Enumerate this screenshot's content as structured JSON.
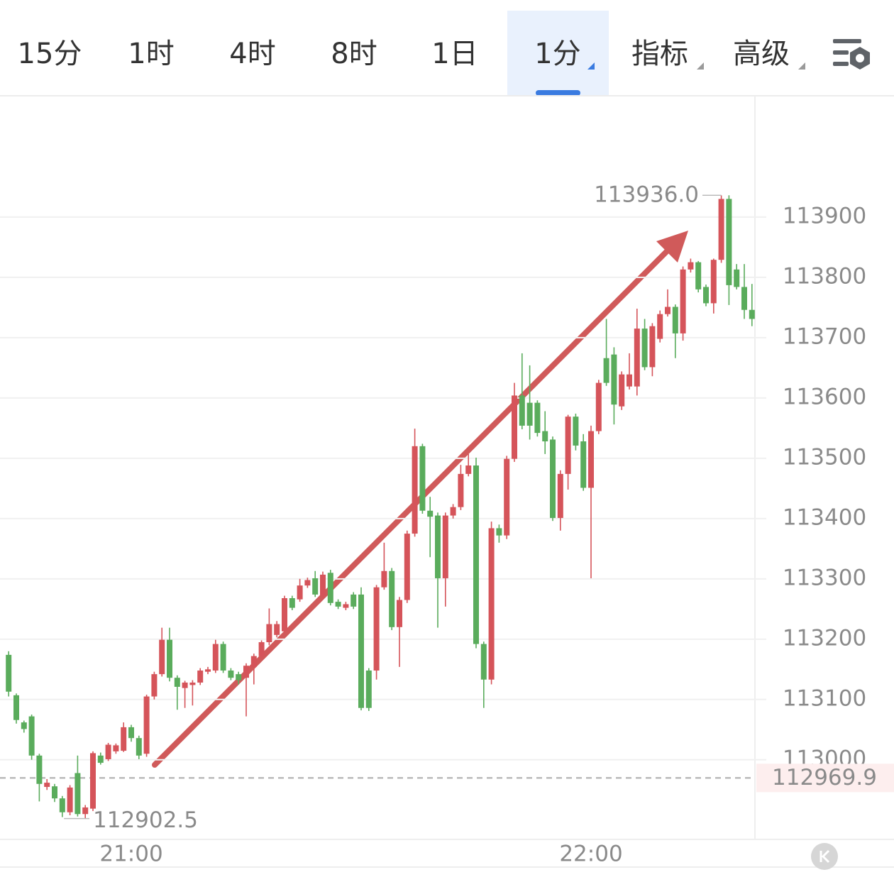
{
  "toolbar": {
    "tabs": [
      "15分",
      "1时",
      "4时",
      "8时",
      "1日",
      "1分",
      "指标",
      "高级"
    ],
    "active_tab": 5
  },
  "chart_data": {
    "type": "candlestick",
    "categories": [
      null,
      null,
      null,
      null,
      null,
      null,
      null,
      null,
      null,
      null,
      null,
      null,
      null,
      null,
      null,
      null,
      "21:00",
      null,
      null,
      null,
      null,
      null,
      null,
      null,
      null,
      null,
      null,
      null,
      null,
      null,
      null,
      null,
      null,
      null,
      null,
      null,
      null,
      null,
      null,
      null,
      null,
      null,
      null,
      null,
      null,
      null,
      null,
      null,
      null,
      null,
      null,
      null,
      null,
      null,
      null,
      null,
      null,
      null,
      null,
      null,
      null,
      null,
      null,
      null,
      null,
      null,
      null,
      null,
      null,
      null,
      null,
      null,
      null,
      null,
      null,
      null,
      "22:00",
      null,
      null,
      null,
      null,
      null,
      null,
      null,
      null,
      null,
      null,
      null,
      null,
      null,
      null,
      null,
      null,
      null,
      null,
      null,
      null,
      null
    ],
    "open": [
      113174,
      113107,
      113062,
      113072,
      113007,
      112955,
      112956,
      112936,
      112913,
      112978,
      112910,
      112919,
      113007,
      113001,
      113014,
      113015,
      113054,
      113036,
      113010,
      113105,
      113142,
      113199,
      113136,
      113119,
      113124,
      113128,
      113146,
      113148,
      113192,
      113148,
      113142,
      113136,
      113154,
      113172,
      113195,
      113207,
      113213,
      113268,
      113266,
      113289,
      113301,
      113272,
      113310,
      113262,
      113252,
      113274,
      113274,
      113148,
      113148,
      113286,
      113313,
      113220,
      113265,
      113375,
      113520,
      113413,
      113405,
      113301,
      113405,
      113419,
      113474,
      113488,
      113192,
      113133,
      113384,
      113372,
      113499,
      113604,
      113592,
      113592,
      113545,
      113531,
      113401,
      113474,
      113569,
      113528,
      113451,
      113545,
      113666,
      113672,
      113586,
      113619,
      113619,
      113715,
      113651,
      113698,
      113739,
      113751,
      113707,
      113813,
      113825,
      113784,
      113757,
      113829,
      113930,
      113813,
      113784,
      113746
    ],
    "close": [
      113113,
      113066,
      113051,
      113007,
      112960,
      112962,
      112936,
      112913,
      112954,
      112910,
      112921,
      113011,
      112995,
      113025,
      113024,
      113054,
      113036,
      113007,
      113105,
      113142,
      113199,
      113136,
      113121,
      113128,
      113128,
      113148,
      113150,
      113192,
      113148,
      113136,
      113132,
      113156,
      113172,
      113195,
      113225,
      113225,
      113268,
      113252,
      113289,
      113298,
      113274,
      113307,
      113260,
      113254,
      113258,
      113254,
      113086,
      113086,
      113286,
      113313,
      113220,
      113265,
      113375,
      113520,
      113413,
      113403,
      113301,
      113405,
      113419,
      113474,
      113488,
      113192,
      113133,
      113384,
      113372,
      113499,
      113604,
      113554,
      113554,
      113542,
      113528,
      113401,
      113474,
      113569,
      113521,
      113451,
      113545,
      113625,
      113625,
      113589,
      113639,
      113639,
      113715,
      113651,
      113719,
      113739,
      113751,
      113707,
      113813,
      113825,
      113780,
      113757,
      113829,
      113930,
      113787,
      113784,
      113746,
      113731
    ],
    "high": [
      113180,
      113110,
      113065,
      113075,
      113010,
      112968,
      112960,
      112940,
      112958,
      113007,
      112925,
      113014,
      113012,
      113028,
      113027,
      113062,
      113058,
      113040,
      113108,
      113146,
      113219,
      113219,
      113140,
      113131,
      113132,
      113152,
      113154,
      113199,
      113196,
      113152,
      113146,
      113160,
      113176,
      113198,
      113251,
      113230,
      113272,
      113272,
      113300,
      113302,
      113313,
      113312,
      113315,
      113266,
      113262,
      113278,
      113286,
      113152,
      113290,
      113360,
      113318,
      113270,
      113380,
      113549,
      113524,
      113436,
      113410,
      113410,
      113424,
      113489,
      113507,
      113501,
      113196,
      113395,
      113390,
      113504,
      113625,
      113674,
      113654,
      113596,
      113578,
      113536,
      113480,
      113572,
      113574,
      113540,
      113554,
      113630,
      113731,
      113684,
      113644,
      113674,
      113748,
      113731,
      113724,
      113745,
      113780,
      113755,
      113818,
      113831,
      113827,
      113788,
      113831,
      113936,
      113936,
      113822,
      113822,
      113789
    ],
    "low": [
      113105,
      113060,
      113045,
      113000,
      112931,
      112950,
      112930,
      112905,
      112908,
      112906,
      112902.5,
      112915,
      112992,
      112998,
      113010,
      113013,
      113030,
      113001,
      113005,
      113100,
      113138,
      113130,
      113083,
      113086,
      113090,
      113124,
      113142,
      113144,
      113144,
      113132,
      113125,
      113072,
      113125,
      113168,
      113190,
      113203,
      113210,
      113248,
      113262,
      113285,
      113270,
      113268,
      113256,
      113250,
      113248,
      113250,
      113082,
      113081,
      113133,
      113282,
      113215,
      113154,
      113260,
      113370,
      113408,
      113336,
      113219,
      113254,
      113400,
      113414,
      113470,
      113185,
      113086,
      113125,
      113360,
      113366,
      113494,
      113548,
      113531,
      113536,
      113507,
      113396,
      113380,
      113448,
      113513,
      113446,
      113301,
      113540,
      113620,
      113556,
      113580,
      113614,
      113604,
      113646,
      113636,
      113692,
      113735,
      113666,
      113695,
      113808,
      113775,
      113752,
      113740,
      113824,
      113754,
      113780,
      113731,
      113719
    ],
    "up_color": "#d5545a",
    "down_color": "#5aac5c",
    "ylim": [
      112868,
      114101
    ],
    "yticks": [
      113000,
      113100,
      113200,
      113300,
      113400,
      113500,
      113600,
      113700,
      113800,
      113900
    ],
    "grid": true,
    "high_label": {
      "value": 113936,
      "label": "113936.0"
    },
    "low_label": 112902.5,
    "price_line": 112969.9
  }
}
